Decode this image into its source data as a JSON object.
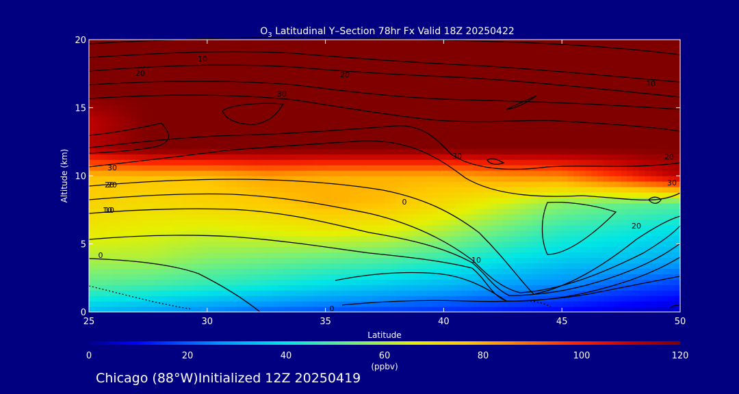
{
  "chart_data": {
    "type": "heatmap",
    "title_main": "O",
    "title_sub": "3",
    "title_rest": " Latitudinal Y–Section 78hr  Fx Valid 18Z 20250422",
    "xlabel": "Latitude",
    "ylabel": "Altitude (km)",
    "xlim": [
      25,
      50
    ],
    "ylim": [
      0,
      20
    ],
    "x_ticks": [
      "25",
      "30",
      "35",
      "40",
      "45",
      "50"
    ],
    "y_ticks": [
      "0",
      "5",
      "10",
      "15",
      "20"
    ],
    "x": [
      25,
      27.5,
      30,
      32.5,
      35,
      37.5,
      40,
      42.5,
      45,
      47.5,
      50
    ],
    "y": [
      0,
      2,
      4,
      6,
      8,
      10,
      12,
      14,
      16,
      18,
      20
    ],
    "z": [
      [
        32,
        28,
        24,
        20,
        18,
        16,
        14,
        12,
        9,
        6,
        4
      ],
      [
        50,
        48,
        45,
        42,
        38,
        35,
        32,
        28,
        25,
        20,
        16
      ],
      [
        60,
        60,
        56,
        54,
        52,
        50,
        46,
        40,
        36,
        34,
        30
      ],
      [
        68,
        66,
        64,
        66,
        68,
        66,
        60,
        52,
        45,
        42,
        38
      ],
      [
        74,
        72,
        74,
        76,
        80,
        78,
        72,
        64,
        56,
        52,
        50
      ],
      [
        78,
        78,
        78,
        82,
        80,
        80,
        80,
        84,
        86,
        98,
        112
      ],
      [
        112,
        120,
        120,
        120,
        120,
        120,
        120,
        120,
        120,
        120,
        120
      ],
      [
        110,
        120,
        120,
        120,
        120,
        120,
        120,
        120,
        120,
        120,
        120
      ],
      [
        120,
        120,
        120,
        120,
        120,
        120,
        120,
        120,
        120,
        120,
        120
      ],
      [
        120,
        120,
        120,
        120,
        120,
        120,
        120,
        120,
        120,
        120,
        120
      ],
      [
        120,
        120,
        120,
        120,
        120,
        120,
        120,
        120,
        120,
        120,
        120
      ]
    ],
    "colorbar": {
      "min": 0,
      "max": 120,
      "ticks": [
        "0",
        "20",
        "40",
        "60",
        "80",
        "100",
        "120"
      ],
      "unit": "(ppbv)"
    },
    "contour_labels": [
      "10",
      "20",
      "20",
      "30",
      "10",
      "30",
      "20",
      "10",
      "0",
      "20",
      "10",
      "0",
      "30",
      "20",
      "30",
      "20",
      "10",
      "0"
    ],
    "footer": "Chicago (88°W)Initialized 12Z 20250419"
  }
}
